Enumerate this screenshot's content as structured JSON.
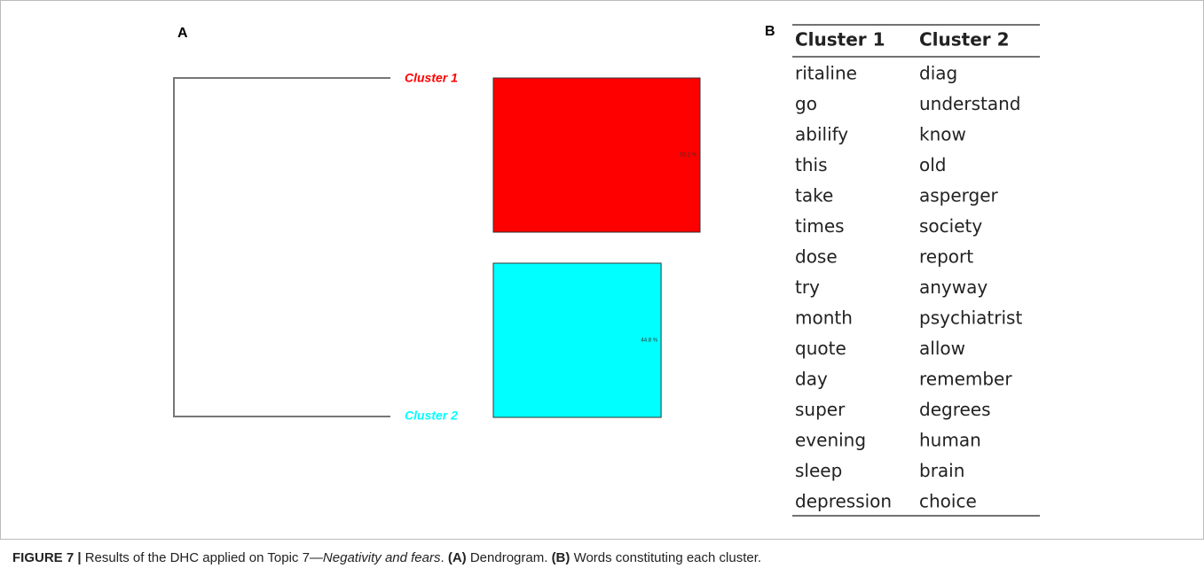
{
  "panels": {
    "a": "A",
    "b": "B"
  },
  "dendrogram": {
    "clusters": [
      {
        "name": "Cluster 1",
        "color": "#ff0000",
        "value": 55.2,
        "value_label": "55.2 %"
      },
      {
        "name": "Cluster 2",
        "color": "#00ffff",
        "value": 44.8,
        "value_label": "44.8 %"
      }
    ]
  },
  "table": {
    "header": [
      "Cluster 1",
      "Cluster 2"
    ],
    "rows": [
      [
        "ritaline",
        "diag"
      ],
      [
        "go",
        "understand"
      ],
      [
        "abilify",
        "know"
      ],
      [
        "this",
        "old"
      ],
      [
        "take",
        "asperger"
      ],
      [
        "times",
        "society"
      ],
      [
        "dose",
        "report"
      ],
      [
        "try",
        "anyway"
      ],
      [
        "month",
        "psychiatrist"
      ],
      [
        "quote",
        "allow"
      ],
      [
        "day",
        "remember"
      ],
      [
        "super",
        "degrees"
      ],
      [
        "evening",
        "human"
      ],
      [
        "sleep",
        "brain"
      ],
      [
        "depression",
        "choice"
      ]
    ]
  },
  "caption": {
    "label": "FIGURE 7 |",
    "text1": "Results of the DHC applied on Topic 7—",
    "topic": "Negativity and fears",
    "text2": ".",
    "a": "(A)",
    "text3": "Dendrogram.",
    "b": "(B)",
    "text4": "Words constituting each cluster."
  }
}
